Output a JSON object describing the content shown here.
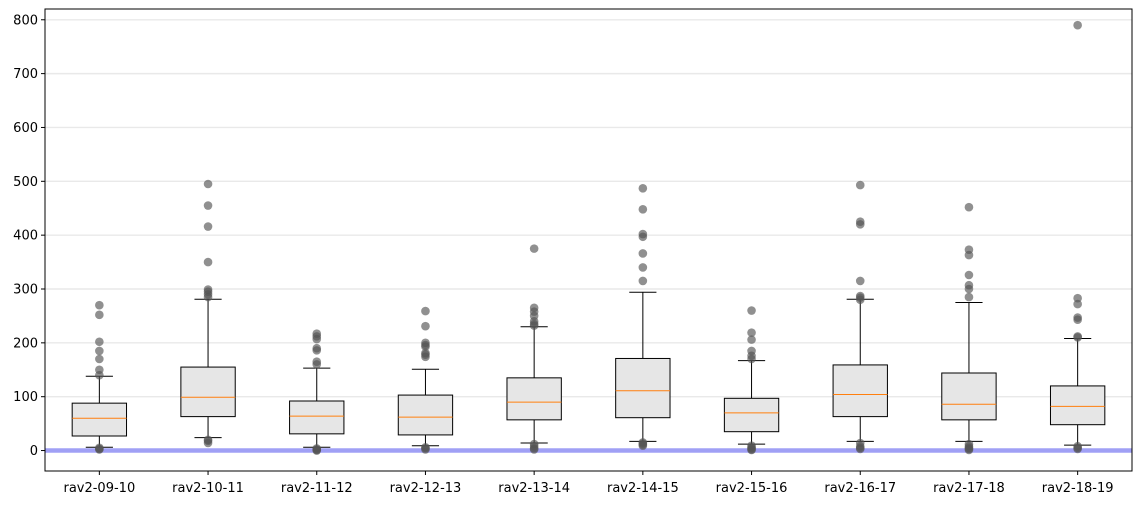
{
  "chart_data": {
    "type": "box",
    "title": "",
    "xlabel": "",
    "ylabel": "",
    "ylim": [
      -38,
      820
    ],
    "yticks": [
      0,
      100,
      200,
      300,
      400,
      500,
      600,
      700,
      800
    ],
    "grid": "horizontal",
    "reference_line": {
      "y": 0,
      "color": "#a0a0f5"
    },
    "colors": {
      "box_fill": "#e6e6e6",
      "median": "#ff7f0e",
      "outlier": "#555555"
    },
    "categories": [
      "rav2-09-10",
      "rav2-10-11",
      "rav2-11-12",
      "rav2-12-13",
      "rav2-13-14",
      "rav2-14-15",
      "rav2-15-16",
      "rav2-16-17",
      "rav2-17-18",
      "rav2-18-19"
    ],
    "boxes": [
      {
        "label": "rav2-09-10",
        "whisker_low": 6,
        "q1": 27,
        "median": 60,
        "q3": 88,
        "whisker_high": 138,
        "outliers": [
          270,
          252,
          202,
          185,
          170,
          150,
          140,
          5,
          3,
          2
        ]
      },
      {
        "label": "rav2-10-11",
        "whisker_low": 24,
        "q1": 63,
        "median": 99,
        "q3": 155,
        "whisker_high": 281,
        "outliers": [
          495,
          455,
          416,
          350,
          299,
          295,
          290,
          285,
          20,
          18,
          14
        ]
      },
      {
        "label": "rav2-11-12",
        "whisker_low": 6,
        "q1": 31,
        "median": 64,
        "q3": 92,
        "whisker_high": 153,
        "outliers": [
          217,
          212,
          207,
          190,
          186,
          165,
          160,
          4,
          2,
          1,
          0
        ]
      },
      {
        "label": "rav2-12-13",
        "whisker_low": 9,
        "q1": 29,
        "median": 62,
        "q3": 103,
        "whisker_high": 151,
        "outliers": [
          259,
          231,
          200,
          196,
          193,
          181,
          178,
          174,
          6,
          4,
          2
        ]
      },
      {
        "label": "rav2-13-14",
        "whisker_low": 14,
        "q1": 57,
        "median": 90,
        "q3": 135,
        "whisker_high": 230,
        "outliers": [
          375,
          265,
          258,
          250,
          240,
          235,
          232,
          12,
          8,
          4,
          2
        ]
      },
      {
        "label": "rav2-14-15",
        "whisker_low": 17,
        "q1": 61,
        "median": 111,
        "q3": 171,
        "whisker_high": 294,
        "outliers": [
          487,
          448,
          402,
          397,
          366,
          340,
          315,
          15,
          13,
          11,
          9
        ]
      },
      {
        "label": "rav2-15-16",
        "whisker_low": 12,
        "q1": 35,
        "median": 70,
        "q3": 97,
        "whisker_high": 167,
        "outliers": [
          260,
          219,
          206,
          185,
          176,
          170,
          9,
          6,
          4,
          2,
          1
        ]
      },
      {
        "label": "rav2-16-17",
        "whisker_low": 17,
        "q1": 63,
        "median": 104,
        "q3": 159,
        "whisker_high": 281,
        "outliers": [
          493,
          425,
          420,
          315,
          287,
          284,
          280,
          14,
          8,
          5,
          3
        ]
      },
      {
        "label": "rav2-17-18",
        "whisker_low": 17,
        "q1": 57,
        "median": 86,
        "q3": 144,
        "whisker_high": 275,
        "outliers": [
          452,
          373,
          363,
          326,
          307,
          300,
          285,
          12,
          8,
          5,
          3,
          1
        ]
      },
      {
        "label": "rav2-18-19",
        "whisker_low": 10,
        "q1": 48,
        "median": 82,
        "q3": 120,
        "whisker_high": 208,
        "outliers": [
          790,
          283,
          272,
          247,
          243,
          212,
          210,
          8,
          5,
          3
        ]
      }
    ]
  }
}
